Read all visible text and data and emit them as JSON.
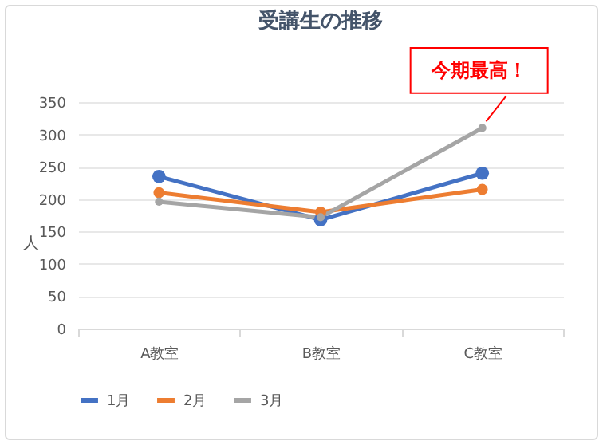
{
  "chart_data": {
    "type": "line",
    "title": "受講生の推移",
    "ylabel": "人",
    "categories": [
      "A教室",
      "B教室",
      "C教室"
    ],
    "series": [
      {
        "name": "1月",
        "color": "#4472c4",
        "values": [
          235,
          168,
          240
        ]
      },
      {
        "name": "2月",
        "color": "#ed7d31",
        "values": [
          210,
          180,
          215
        ]
      },
      {
        "name": "3月",
        "color": "#a5a5a5",
        "values": [
          196,
          172,
          310
        ]
      }
    ],
    "ylim": [
      0,
      350
    ],
    "yticks": [
      0,
      50,
      100,
      150,
      200,
      250,
      300,
      350
    ],
    "grid": "y",
    "legend": "bottom",
    "marker": "circle",
    "line_style": "solid",
    "annotations": [
      {
        "text": "今期最高！",
        "x": "C教室",
        "y": 310
      }
    ]
  }
}
